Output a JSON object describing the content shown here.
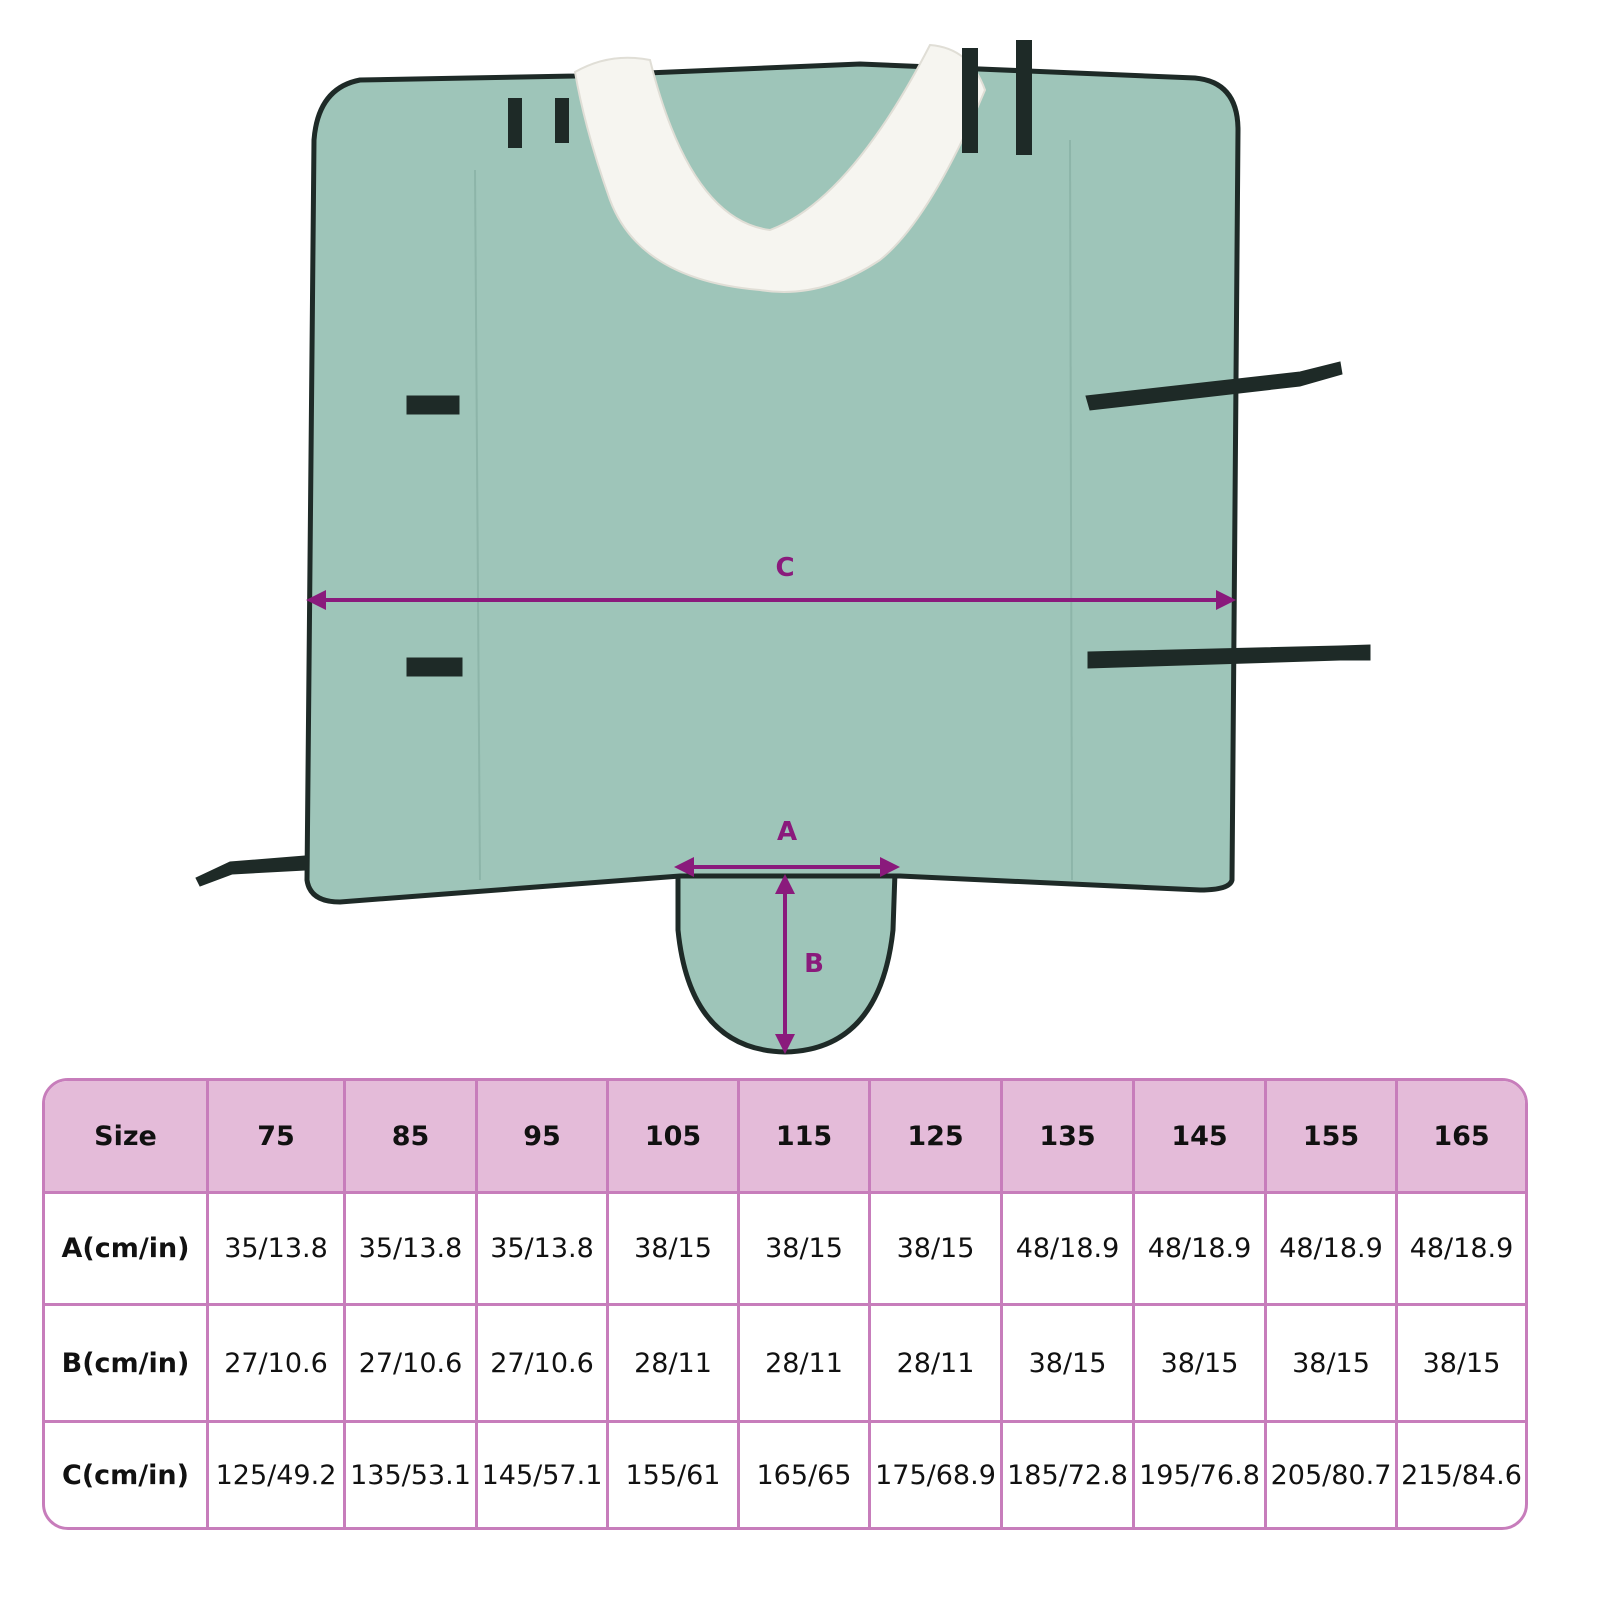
{
  "diagram": {
    "labels": {
      "a": "A",
      "b": "B",
      "c": "C"
    },
    "colors": {
      "fabric": "#9ec5b9",
      "edge": "#1e2a27",
      "collar": "#f6f5f0",
      "dimension": "#8a1a7c"
    }
  },
  "table": {
    "header": [
      "Size",
      "75",
      "85",
      "95",
      "105",
      "115",
      "125",
      "135",
      "145",
      "155",
      "165"
    ],
    "rows": [
      [
        "A(cm/in)",
        "35/13.8",
        "35/13.8",
        "35/13.8",
        "38/15",
        "38/15",
        "38/15",
        "48/18.9",
        "48/18.9",
        "48/18.9",
        "48/18.9"
      ],
      [
        "B(cm/in)",
        "27/10.6",
        "27/10.6",
        "27/10.6",
        "28/11",
        "28/11",
        "28/11",
        "38/15",
        "38/15",
        "38/15",
        "38/15"
      ],
      [
        "C(cm/in)",
        "125/49.2",
        "135/53.1",
        "145/57.1",
        "155/61",
        "165/65",
        "175/68.9",
        "185/72.8",
        "195/76.8",
        "205/80.7",
        "215/84.6"
      ]
    ],
    "colors": {
      "border": "#c77dbb",
      "header_bg": "#e4bbd9"
    }
  }
}
